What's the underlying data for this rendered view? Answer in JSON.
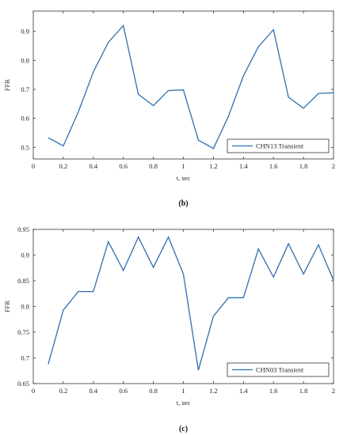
{
  "chart_data": [
    {
      "type": "line",
      "panel_label": "(b)",
      "xlabel": "t, sec",
      "ylabel": "FFR",
      "xlim": [
        0,
        2
      ],
      "ylim": [
        0.46,
        0.97
      ],
      "xticks": [
        "0",
        "0.2",
        "0.4",
        "0.6",
        "0.8",
        "1",
        "1.2",
        "1.4",
        "1.6",
        "1.8",
        "2"
      ],
      "yticks": [
        "0.5",
        "0.6",
        "0.7",
        "0.8",
        "0.9"
      ],
      "grid": false,
      "legend_position": "bottom-right",
      "color": "#2e6fb0",
      "series": [
        {
          "name": "CHN13 Transient",
          "x": [
            0.1,
            0.2,
            0.3,
            0.4,
            0.5,
            0.6,
            0.7,
            0.8,
            0.9,
            1.0,
            1.1,
            1.2,
            1.3,
            1.4,
            1.5,
            1.6,
            1.7,
            1.8,
            1.9,
            2.0
          ],
          "y": [
            0.533,
            0.505,
            0.622,
            0.76,
            0.862,
            0.92,
            0.683,
            0.644,
            0.696,
            0.698,
            0.525,
            0.496,
            0.607,
            0.747,
            0.847,
            0.906,
            0.673,
            0.635,
            0.686,
            0.688
          ]
        }
      ]
    },
    {
      "type": "line",
      "panel_label": "(c)",
      "xlabel": "t, sec",
      "ylabel": "FFR",
      "xlim": [
        0,
        2
      ],
      "ylim": [
        0.65,
        0.95
      ],
      "xticks": [
        "0",
        "0.2",
        "0.4",
        "0.6",
        "0.8",
        "1",
        "1.2",
        "1.4",
        "1.6",
        "1.8",
        "2"
      ],
      "yticks": [
        "0.65",
        "0.7",
        "0.75",
        "0.8",
        "0.85",
        "0.9",
        "0.95"
      ],
      "grid": false,
      "legend_position": "bottom-right",
      "color": "#2e6fb0",
      "series": [
        {
          "name": "CHN03 Transient",
          "x": [
            0.1,
            0.2,
            0.3,
            0.4,
            0.5,
            0.6,
            0.7,
            0.8,
            0.9,
            1.0,
            1.1,
            1.2,
            1.3,
            1.4,
            1.5,
            1.6,
            1.7,
            1.8,
            1.9,
            2.0
          ],
          "y": [
            0.688,
            0.793,
            0.829,
            0.829,
            0.926,
            0.87,
            0.935,
            0.876,
            0.935,
            0.863,
            0.676,
            0.781,
            0.817,
            0.817,
            0.912,
            0.857,
            0.922,
            0.863,
            0.92,
            0.851
          ]
        }
      ]
    }
  ]
}
